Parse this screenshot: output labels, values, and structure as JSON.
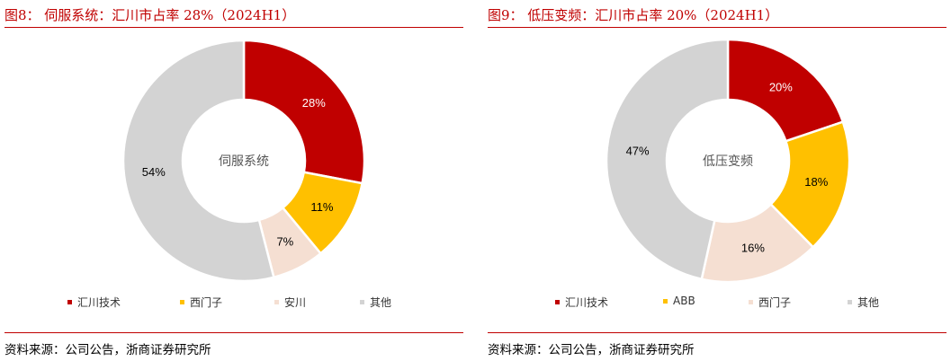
{
  "charts": [
    {
      "title": "图8：  伺服系统：汇川市占率 28%（2024H1）",
      "source": "资料来源：公司公告，浙商证券研究所",
      "chart_data": {
        "type": "pie",
        "center_label": "伺服系统",
        "categories": [
          "汇川技术",
          "西门子",
          "安川",
          "其他"
        ],
        "values": [
          28,
          11,
          7,
          54
        ],
        "labels": [
          "28%",
          "11%",
          "7%",
          "54%"
        ],
        "colors": [
          "#c00000",
          "#ffc000",
          "#f5dfd2",
          "#d3d3d3"
        ],
        "label_colors": [
          "#ffffff",
          "#000000",
          "#000000",
          "#000000"
        ],
        "legend_position": "bottom"
      }
    },
    {
      "title": "图9：  低压变频：汇川市占率 20%（2024H1）",
      "source": "资料来源：公司公告，浙商证券研究所",
      "chart_data": {
        "type": "pie",
        "center_label": "低压变频",
        "categories": [
          "汇川技术",
          "ABB",
          "西门子",
          "其他"
        ],
        "values": [
          20,
          18,
          16,
          47
        ],
        "labels": [
          "20%",
          "18%",
          "16%",
          "47%"
        ],
        "colors": [
          "#c00000",
          "#ffc000",
          "#f5dfd2",
          "#d3d3d3"
        ],
        "label_colors": [
          "#ffffff",
          "#000000",
          "#000000",
          "#000000"
        ],
        "legend_position": "bottom"
      }
    }
  ]
}
